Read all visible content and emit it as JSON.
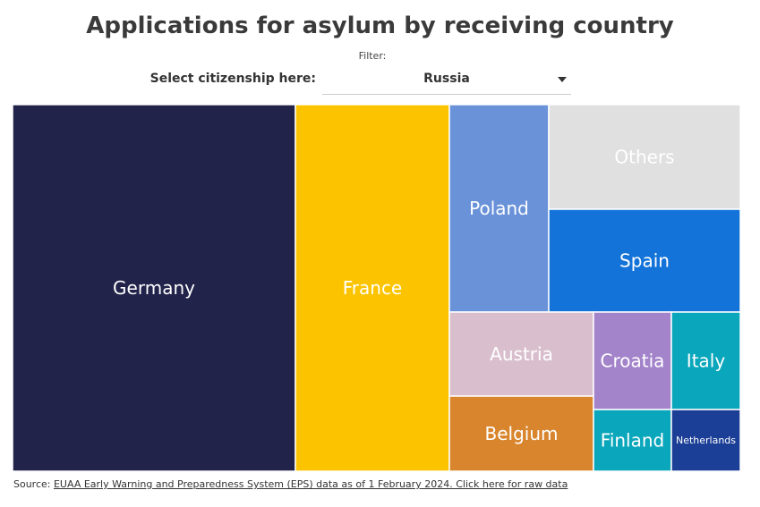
{
  "title": "Applications for asylum by receiving country",
  "filter": {
    "caption": "Filter:",
    "label": "Select citizenship here:",
    "selected": "Russia"
  },
  "chart_data": {
    "type": "treemap",
    "title": "Applications for asylum by receiving country",
    "units": "relative share (estimated from tile areas)",
    "items": [
      {
        "label": "Germany",
        "value": 38.0,
        "color": "#22234a",
        "text_color": "#ffffff"
      },
      {
        "label": "France",
        "value": 20.6,
        "color": "#fcc400",
        "text_color": "#ffffff"
      },
      {
        "label": "Poland",
        "value": 7.6,
        "color": "#6a92d9",
        "text_color": "#ffffff"
      },
      {
        "label": "Others",
        "value": 7.4,
        "color": "#e0e0e0",
        "text_color": "#ffffff"
      },
      {
        "label": "Spain",
        "value": 7.4,
        "color": "#1373d8",
        "text_color": "#ffffff"
      },
      {
        "label": "Austria",
        "value": 4.6,
        "color": "#d9bfcd",
        "text_color": "#ffffff"
      },
      {
        "label": "Belgium",
        "value": 4.3,
        "color": "#d9852e",
        "text_color": "#ffffff"
      },
      {
        "label": "Croatia",
        "value": 2.7,
        "color": "#a384cb",
        "text_color": "#ffffff"
      },
      {
        "label": "Italy",
        "value": 2.3,
        "color": "#0aa6bb",
        "text_color": "#ffffff"
      },
      {
        "label": "Finland",
        "value": 2.6,
        "color": "#0aa6bb",
        "text_color": "#ffffff"
      },
      {
        "label": "Netherlands",
        "value": 2.1,
        "color": "#1b3e96",
        "text_color": "#ffffff"
      }
    ]
  },
  "source": {
    "prefix": "Source: ",
    "link_text": "EUAA Early Warning and Preparedness System (EPS) data as of 1 February 2024. Click here for raw data"
  }
}
